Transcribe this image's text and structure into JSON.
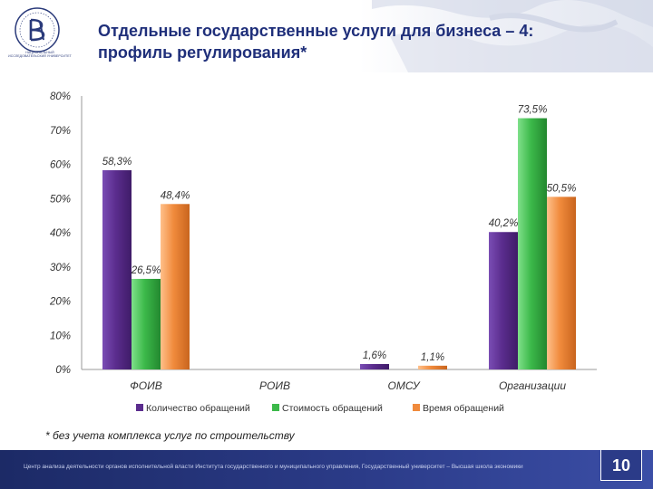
{
  "header": {
    "title_line1": "Отдельные государственные услуги для бизнеса – 4:",
    "title_line2": "профиль регулирования*",
    "logo_caption": "НАЦИОНАЛЬНЫЙ ИССЛЕДОВАТЕЛЬСКИЙ УНИВЕРСИТЕТ"
  },
  "chart_data": {
    "type": "bar",
    "categories": [
      "ФОИВ",
      "РОИВ",
      "ОМСУ",
      "Организации"
    ],
    "series": [
      {
        "name": "Количество обращений",
        "color": "#5b2d8e",
        "values": [
          58.3,
          null,
          1.6,
          40.2
        ],
        "labels": [
          "58,3%",
          "",
          "1,6%",
          "40,2%"
        ]
      },
      {
        "name": "Стоимость обращений",
        "color": "#3cb94a",
        "values": [
          26.5,
          null,
          null,
          73.5
        ],
        "labels": [
          "26,5%",
          "",
          "",
          "73,5%"
        ]
      },
      {
        "name": "Время обращений",
        "color": "#f08a3c",
        "values": [
          48.4,
          null,
          1.1,
          50.5
        ],
        "labels": [
          "48,4%",
          "",
          "1,1%",
          "50,5%"
        ]
      }
    ],
    "yticks": [
      "0%",
      "10%",
      "20%",
      "30%",
      "40%",
      "50%",
      "60%",
      "70%",
      "80%"
    ],
    "ylim": [
      0,
      80
    ],
    "legend_position": "bottom"
  },
  "footnote": "* без учета комплекса услуг по строительству",
  "footer": {
    "text": "Центр анализа деятельности органов исполнительной власти Института государственного и муниципального управления, Государственный университет – Высшая школа экономики",
    "page_number": "10"
  }
}
